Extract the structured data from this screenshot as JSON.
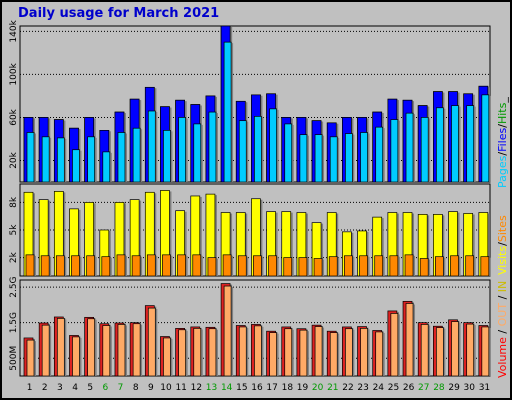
{
  "title": "Daily usage for March 2021",
  "colors": {
    "pages": "#00ccff",
    "files": "#0000ff",
    "hits": "#009900",
    "visits": "#ffff00",
    "sites": "#ff8800",
    "in": "#ffaa66",
    "out": "#dd2222",
    "volume_label": "#ff0000",
    "frame_bg": "#c0c0c0",
    "plot_bg": "#c0c0c0",
    "weekend_label": "#009900",
    "title": "#0000cc"
  },
  "legends": {
    "top": {
      "pages": "Pages",
      "files": "Files",
      "hits": "Hits",
      "sep": "/",
      "end": "_"
    },
    "mid": {
      "visits": "Visits",
      "sites": "Sites",
      "sep": "/"
    },
    "bot": {
      "in": "IN",
      "out": "OUT",
      "volume": "Volume",
      "sep": "/"
    }
  },
  "chart_data": [
    {
      "type": "bar",
      "panel": "hits-files-pages",
      "categories": [
        "1",
        "2",
        "3",
        "4",
        "5",
        "6",
        "7",
        "8",
        "9",
        "10",
        "11",
        "12",
        "13",
        "14",
        "15",
        "16",
        "17",
        "18",
        "19",
        "20",
        "21",
        "22",
        "23",
        "24",
        "25",
        "26",
        "27",
        "28",
        "29",
        "30",
        "31"
      ],
      "weekend_days": [
        "6",
        "7",
        "13",
        "14",
        "20",
        "21",
        "27",
        "28"
      ],
      "ylim": [
        0,
        145000
      ],
      "ticks": [
        {
          "value": 20000,
          "label": "20k"
        },
        {
          "value": 60000,
          "label": "60k"
        },
        {
          "value": 100000,
          "label": "100k"
        },
        {
          "value": 140000,
          "label": "140k"
        }
      ],
      "series": [
        {
          "name": "Hits",
          "values": [
            60000,
            60000,
            58000,
            50000,
            60000,
            48000,
            65000,
            77000,
            88000,
            70000,
            76000,
            72000,
            80000,
            145000,
            75000,
            81000,
            82000,
            60000,
            60000,
            57000,
            55000,
            60000,
            60000,
            65000,
            77000,
            76000,
            71000,
            84000,
            84000,
            82000,
            89000
          ]
        },
        {
          "name": "Files",
          "values": [
            60000,
            60000,
            58000,
            50000,
            60000,
            48000,
            65000,
            77000,
            88000,
            70000,
            76000,
            72000,
            80000,
            145000,
            75000,
            81000,
            82000,
            60000,
            60000,
            57000,
            55000,
            60000,
            60000,
            65000,
            77000,
            76000,
            71000,
            84000,
            84000,
            82000,
            89000
          ]
        },
        {
          "name": "Pages",
          "values": [
            46000,
            42000,
            41000,
            30000,
            42000,
            28000,
            46000,
            50000,
            66000,
            48000,
            60000,
            54000,
            65000,
            130000,
            57000,
            61000,
            68000,
            54000,
            44000,
            44000,
            42000,
            45000,
            46000,
            51000,
            58000,
            64000,
            60000,
            69000,
            71000,
            71000,
            81000
          ]
        }
      ]
    },
    {
      "type": "bar",
      "panel": "visits-sites",
      "categories": [
        "1",
        "2",
        "3",
        "4",
        "5",
        "6",
        "7",
        "8",
        "9",
        "10",
        "11",
        "12",
        "13",
        "14",
        "15",
        "16",
        "17",
        "18",
        "19",
        "20",
        "21",
        "22",
        "23",
        "24",
        "25",
        "26",
        "27",
        "28",
        "29",
        "30",
        "31"
      ],
      "ylim": [
        0,
        10000
      ],
      "ticks": [
        {
          "value": 2000,
          "label": "2k"
        },
        {
          "value": 5000,
          "label": "5k"
        },
        {
          "value": 8000,
          "label": "8k"
        }
      ],
      "series": [
        {
          "name": "Visits",
          "values": [
            9100,
            8300,
            9200,
            7300,
            8000,
            5000,
            8000,
            8300,
            9100,
            9300,
            7100,
            8700,
            8900,
            6900,
            6900,
            8400,
            7000,
            7000,
            6900,
            5800,
            6900,
            4800,
            4900,
            6400,
            6900,
            6900,
            6700,
            6700,
            7000,
            6800,
            6900
          ]
        },
        {
          "name": "Sites",
          "values": [
            2300,
            2200,
            2200,
            2200,
            2200,
            2100,
            2300,
            2200,
            2300,
            2300,
            2300,
            2300,
            2000,
            2300,
            2200,
            2200,
            2200,
            2000,
            2000,
            1900,
            2100,
            2200,
            2200,
            2200,
            2200,
            2300,
            1900,
            2100,
            2200,
            2200,
            2100
          ]
        }
      ]
    },
    {
      "type": "bar",
      "panel": "volume",
      "categories": [
        "1",
        "2",
        "3",
        "4",
        "5",
        "6",
        "7",
        "8",
        "9",
        "10",
        "11",
        "12",
        "13",
        "14",
        "15",
        "16",
        "17",
        "18",
        "19",
        "20",
        "21",
        "22",
        "23",
        "24",
        "25",
        "26",
        "27",
        "28",
        "29",
        "30",
        "31"
      ],
      "ylim": [
        0,
        2.7
      ],
      "ticks": [
        {
          "value": 0.5,
          "label": "500M"
        },
        {
          "value": 1.5,
          "label": "1.5G"
        },
        {
          "value": 2.5,
          "label": "2.5G"
        }
      ],
      "series": [
        {
          "name": "OUT",
          "values": [
            1.07,
            1.49,
            1.66,
            1.14,
            1.65,
            1.47,
            1.49,
            1.5,
            1.98,
            1.11,
            1.34,
            1.38,
            1.37,
            2.6,
            1.42,
            1.45,
            1.26,
            1.38,
            1.33,
            1.43,
            1.26,
            1.38,
            1.39,
            1.28,
            1.83,
            2.1,
            1.5,
            1.4,
            1.58,
            1.5,
            1.42
          ]
        },
        {
          "name": "IN",
          "values": [
            1.01,
            1.43,
            1.62,
            1.1,
            1.61,
            1.42,
            1.45,
            1.47,
            1.91,
            1.07,
            1.3,
            1.34,
            1.33,
            2.53,
            1.38,
            1.41,
            1.22,
            1.33,
            1.29,
            1.39,
            1.22,
            1.33,
            1.34,
            1.24,
            1.76,
            2.04,
            1.45,
            1.36,
            1.53,
            1.46,
            1.38
          ]
        }
      ]
    }
  ]
}
